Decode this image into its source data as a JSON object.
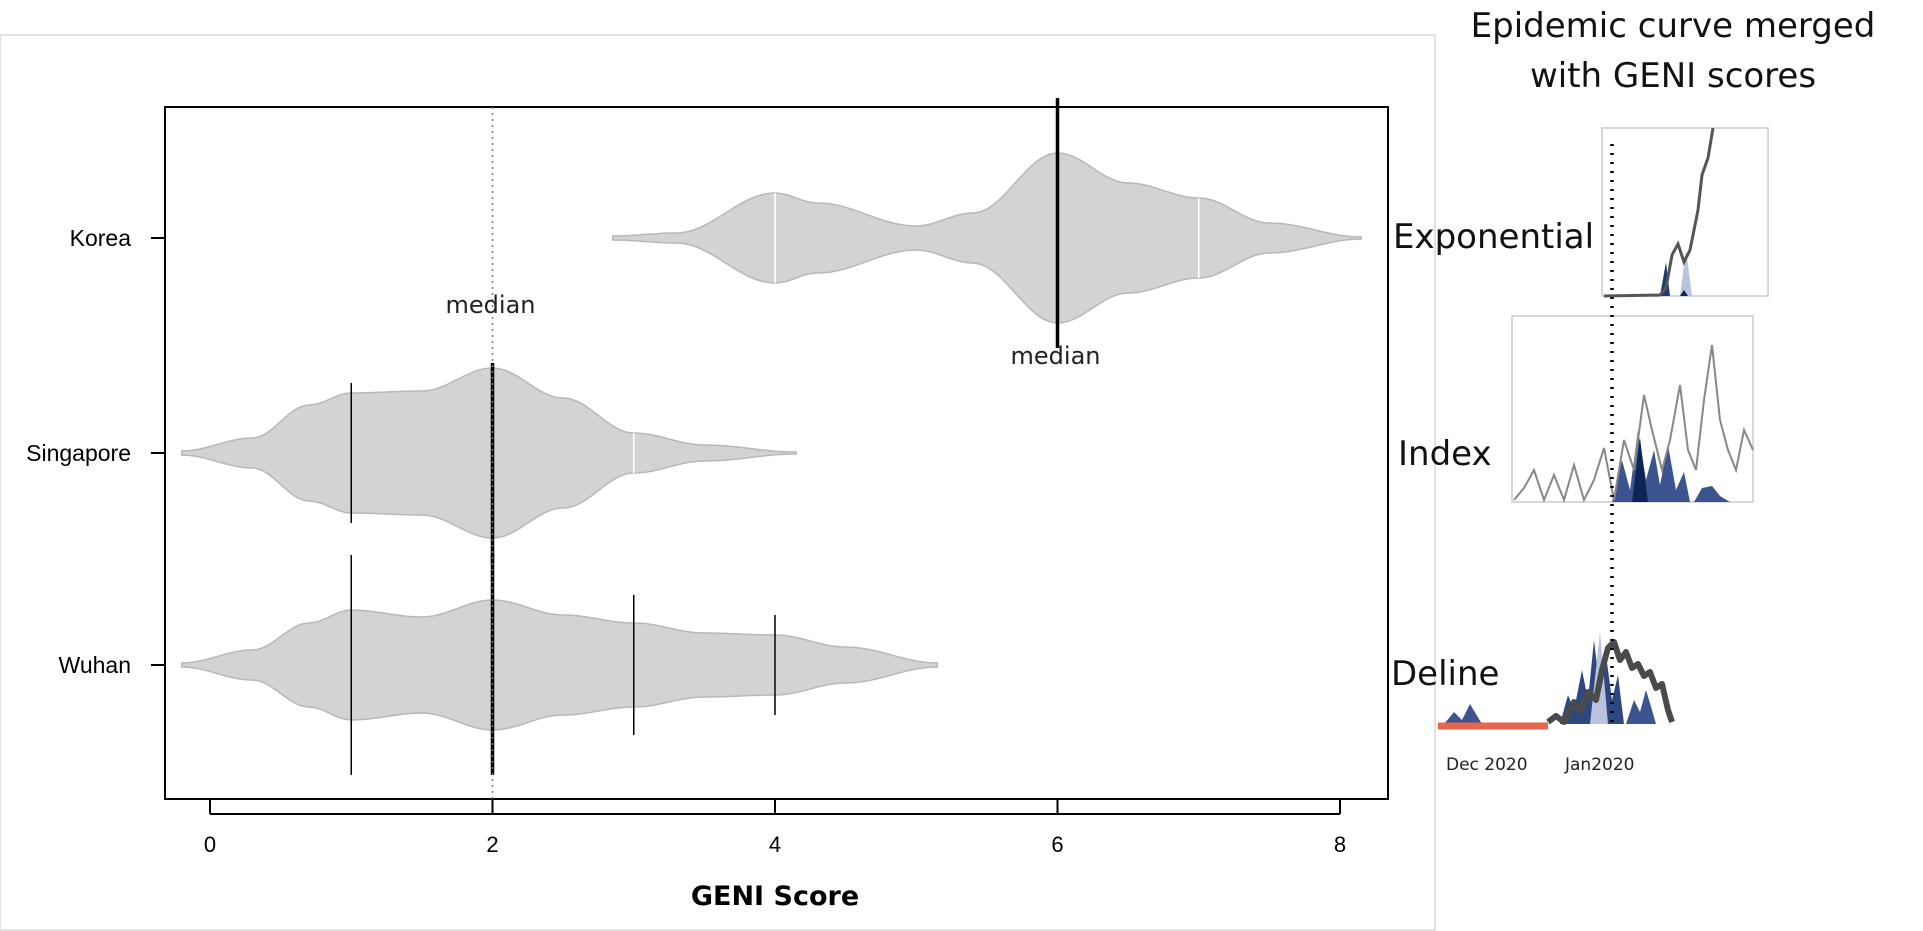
{
  "panel_title": "Epidemic curve merged with GENI scores",
  "panel_title_lines": [
    "Epidemic curve merged",
    "with GENI scores"
  ],
  "chart_data": {
    "type": "violin",
    "xlabel": "GENI Score",
    "ylabel": "",
    "xlim": [
      -0.35,
      8.35
    ],
    "xticks": [
      0,
      2,
      4,
      6,
      8
    ],
    "categories": [
      "Korea",
      "Singapore",
      "Wuhan"
    ],
    "reference_line": {
      "x": 2,
      "style": "dotted"
    },
    "annotations": [
      {
        "text": "median",
        "x": 2,
        "category": "Singapore"
      },
      {
        "text": "median",
        "x": 6,
        "category": "Korea"
      }
    ],
    "series": [
      {
        "category": "Korea",
        "range": [
          2.85,
          8.15
        ],
        "median": 6,
        "lines": [
          4,
          6,
          7
        ],
        "density": [
          [
            2.85,
            0.02
          ],
          [
            3.3,
            0.05
          ],
          [
            4.0,
            0.45
          ],
          [
            4.3,
            0.35
          ],
          [
            5.0,
            0.12
          ],
          [
            5.4,
            0.25
          ],
          [
            6.0,
            0.85
          ],
          [
            6.5,
            0.55
          ],
          [
            7.0,
            0.4
          ],
          [
            7.5,
            0.15
          ],
          [
            8.15,
            0.01
          ]
        ]
      },
      {
        "category": "Singapore",
        "range": [
          -0.2,
          4.15
        ],
        "median": 2,
        "lines": [
          1,
          2,
          3
        ],
        "density": [
          [
            -0.2,
            0.02
          ],
          [
            0.3,
            0.15
          ],
          [
            0.7,
            0.48
          ],
          [
            1.0,
            0.6
          ],
          [
            1.5,
            0.62
          ],
          [
            2.0,
            0.85
          ],
          [
            2.5,
            0.55
          ],
          [
            3.0,
            0.2
          ],
          [
            3.5,
            0.08
          ],
          [
            4.15,
            0.01
          ]
        ]
      },
      {
        "category": "Wuhan",
        "range": [
          -0.2,
          5.15
        ],
        "median": 2,
        "lines": [
          1,
          2,
          3,
          4
        ],
        "density": [
          [
            -0.2,
            0.02
          ],
          [
            0.3,
            0.15
          ],
          [
            0.7,
            0.42
          ],
          [
            1.0,
            0.55
          ],
          [
            1.5,
            0.48
          ],
          [
            2.0,
            0.65
          ],
          [
            2.5,
            0.5
          ],
          [
            3.0,
            0.42
          ],
          [
            3.5,
            0.32
          ],
          [
            4.0,
            0.3
          ],
          [
            4.5,
            0.18
          ],
          [
            5.15,
            0.02
          ]
        ]
      }
    ],
    "quartile_ticks": [
      {
        "category": "Korea",
        "x": 6,
        "span": [
          -1.4,
          1.1
        ],
        "weight": "bold"
      },
      {
        "category": "Singapore",
        "x": 1,
        "span": [
          -0.7,
          0.7
        ],
        "weight": "thin"
      },
      {
        "category": "Singapore",
        "x": 2,
        "span": [
          -0.9,
          1.1
        ],
        "weight": "bold"
      },
      {
        "category": "Wuhan",
        "x": 1,
        "span": [
          -1.1,
          1.1
        ],
        "weight": "thin"
      },
      {
        "category": "Wuhan",
        "x": 2,
        "span": [
          -1.1,
          1.1
        ],
        "weight": "bold"
      },
      {
        "category": "Wuhan",
        "x": 3,
        "span": [
          -0.7,
          0.7
        ],
        "weight": "thin"
      },
      {
        "category": "Wuhan",
        "x": 4,
        "span": [
          -0.5,
          0.5
        ],
        "weight": "thin"
      }
    ],
    "fill_color": "#d3d3d3",
    "outline_color": "#b8b8b8"
  },
  "epidemic_panels": [
    {
      "label": "Exponential"
    },
    {
      "label": "Index"
    },
    {
      "label": "Deline"
    }
  ],
  "date_labels": [
    "Dec 2020",
    "Jan2020"
  ],
  "colors": {
    "navy": "#1f3a6b",
    "dark_navy": "#0e2455",
    "light_blue": "#b8c3dd",
    "line_gray": "#555555",
    "red_bar": "#e8654d"
  }
}
